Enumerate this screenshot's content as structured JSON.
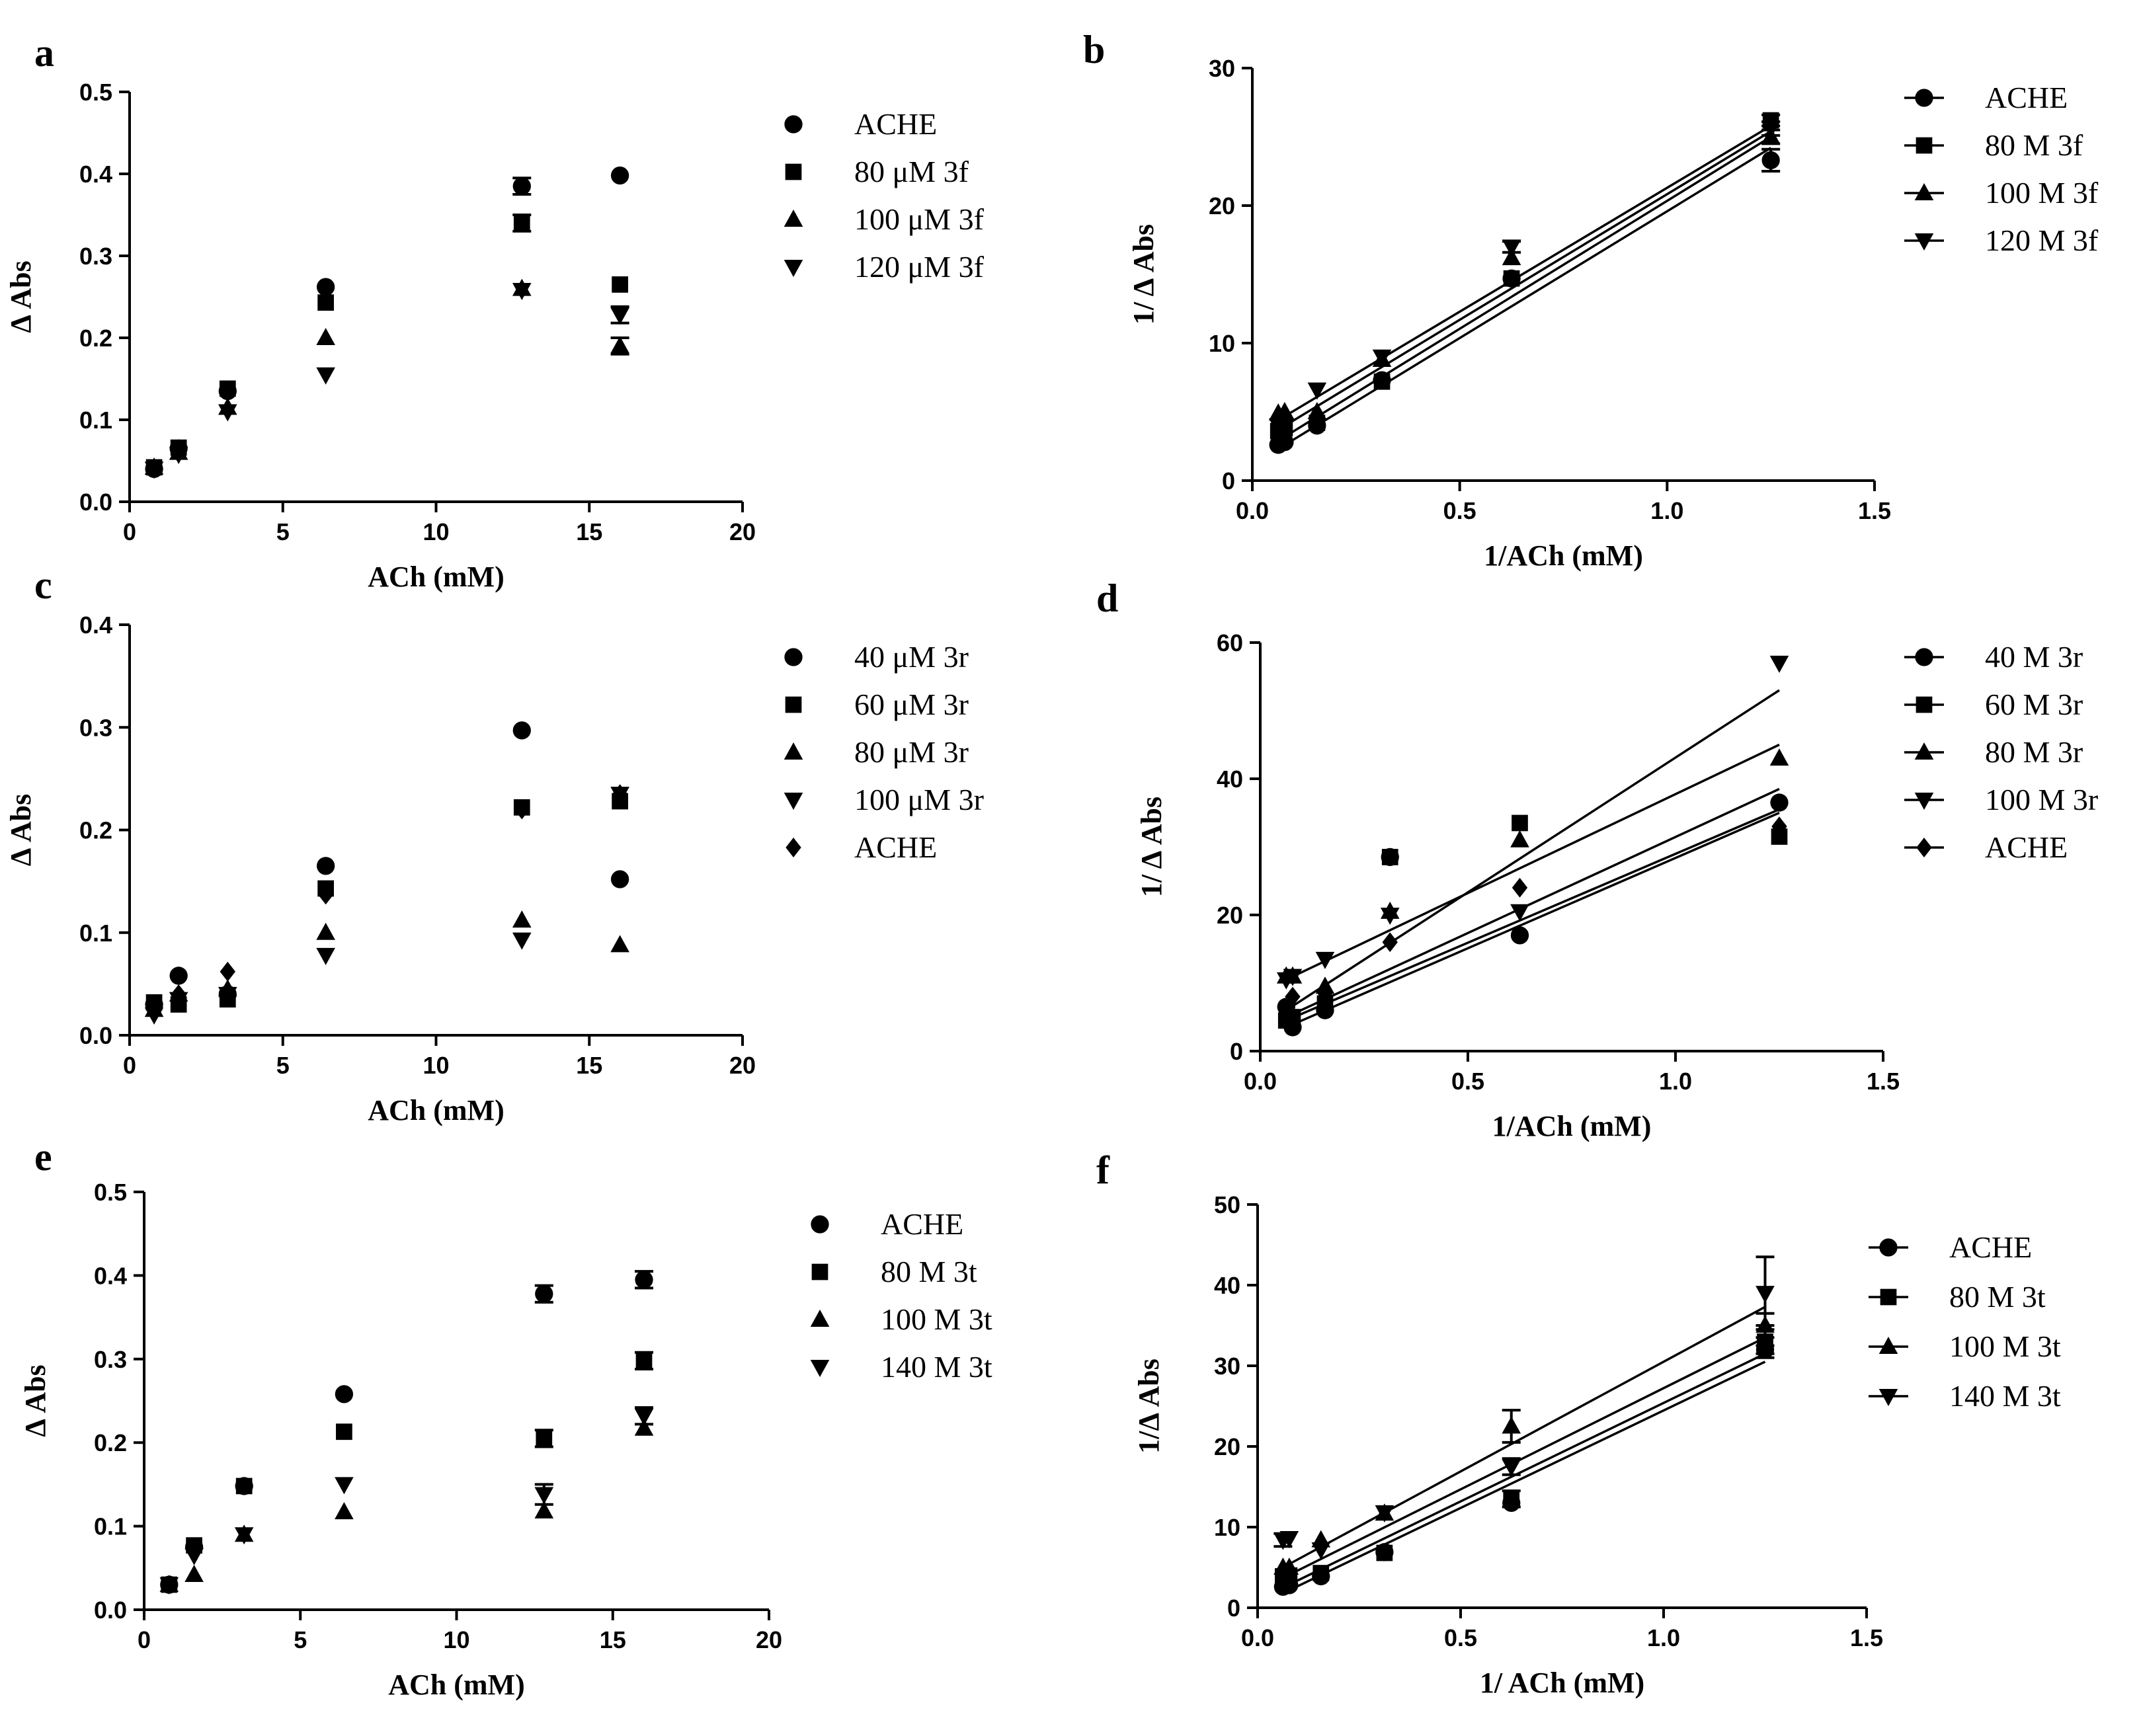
{
  "chart_data": [
    {
      "id": "a",
      "panel_label": "a",
      "type": "scatter",
      "xlabel": "ACh (mM)",
      "ylabel": "Δ Abs",
      "xlim": [
        0,
        20
      ],
      "ylim": [
        0,
        0.5
      ],
      "xticks": [
        0,
        5,
        10,
        15,
        20
      ],
      "yticks": [
        0.0,
        0.1,
        0.2,
        0.3,
        0.4,
        0.5
      ],
      "x_tick_labels": [
        "0",
        "5",
        "10",
        "15",
        "20"
      ],
      "y_tick_labels": [
        "0.0",
        "0.1",
        "0.2",
        "0.3",
        "0.4",
        "0.5"
      ],
      "legend_position": "right",
      "series": [
        {
          "name": "ACHE",
          "marker": "circle",
          "x": [
            0.8,
            1.6,
            3.2,
            6.4,
            12.8,
            16
          ],
          "y": [
            0.04,
            0.065,
            0.135,
            0.262,
            0.385,
            0.398
          ],
          "err": [
            0,
            0,
            0,
            0,
            0.01,
            0
          ]
        },
        {
          "name": "80 μM 3f",
          "marker": "square",
          "x": [
            0.8,
            1.6,
            3.2,
            6.4,
            12.8,
            16
          ],
          "y": [
            0.042,
            0.066,
            0.138,
            0.243,
            0.34,
            0.265
          ],
          "err": [
            0,
            0,
            0,
            0,
            0.01,
            0
          ]
        },
        {
          "name": "100 μM 3f",
          "marker": "triangle-up",
          "x": [
            0.8,
            1.6,
            3.2,
            6.4,
            12.8,
            16
          ],
          "y": [
            0.042,
            0.06,
            0.115,
            0.2,
            0.26,
            0.19
          ],
          "err": [
            0,
            0,
            0,
            0,
            0,
            0.01
          ]
        },
        {
          "name": "120 μM 3f",
          "marker": "triangle-down",
          "x": [
            0.8,
            1.6,
            3.2,
            6.4,
            12.8,
            16
          ],
          "y": [
            0.04,
            0.058,
            0.11,
            0.155,
            0.258,
            0.228
          ],
          "err": [
            0,
            0,
            0,
            0,
            0,
            0.01
          ]
        }
      ]
    },
    {
      "id": "b",
      "panel_label": "b",
      "type": "line",
      "xlabel": "1/ACh (mM)",
      "ylabel": "1/ Δ Abs",
      "xlim": [
        0,
        1.5
      ],
      "ylim": [
        0,
        30
      ],
      "xticks": [
        0,
        0.5,
        1.0,
        1.5
      ],
      "yticks": [
        0,
        10,
        20,
        30
      ],
      "x_tick_labels": [
        "0.0",
        "0.5",
        "1.0",
        "1.5"
      ],
      "y_tick_labels": [
        "0",
        "10",
        "20",
        "30"
      ],
      "legend_position": "right",
      "series": [
        {
          "name": "ACHE",
          "marker": "circle",
          "x": [
            0.0625,
            0.078,
            0.156,
            0.3125,
            0.625,
            1.25
          ],
          "y": [
            2.6,
            2.8,
            4.0,
            7.3,
            14.7,
            23.3
          ],
          "err": [
            0,
            0,
            0,
            0,
            0,
            0.8
          ],
          "fit": [
            [
              0.0625,
              2.3
            ],
            [
              1.25,
              24.2
            ]
          ]
        },
        {
          "name": "80 M 3f",
          "marker": "square",
          "x": [
            0.0625,
            0.078,
            0.156,
            0.3125,
            0.625,
            1.25
          ],
          "y": [
            3.6,
            3.8,
            4.2,
            7.2,
            14.7,
            26.2
          ],
          "err": [
            0,
            0,
            0,
            0,
            0,
            0.4
          ],
          "fit": [
            [
              0.0625,
              2.9
            ],
            [
              1.25,
              25.0
            ]
          ]
        },
        {
          "name": "100 M 3f",
          "marker": "triangle-up",
          "x": [
            0.0625,
            0.078,
            0.156,
            0.3125,
            0.625,
            1.25
          ],
          "y": [
            4.9,
            5.0,
            5.0,
            8.8,
            16.2,
            25.0
          ],
          "err": [
            0,
            0,
            0,
            0,
            0,
            0.5
          ],
          "fit": [
            [
              0.0625,
              3.7
            ],
            [
              1.25,
              25.4
            ]
          ]
        },
        {
          "name": "120 M 3f",
          "marker": "triangle-down",
          "x": [
            0.0625,
            0.078,
            0.156,
            0.3125,
            0.625,
            1.25
          ],
          "y": [
            4.0,
            4.0,
            6.6,
            9.0,
            17.0,
            25.6
          ],
          "err": [
            0,
            0,
            0,
            0,
            0.4,
            0.5
          ],
          "fit": [
            [
              0.0625,
              4.4
            ],
            [
              1.25,
              25.8
            ]
          ]
        }
      ]
    },
    {
      "id": "c",
      "panel_label": "c",
      "type": "scatter",
      "xlabel": "ACh (mM)",
      "ylabel": "Δ Abs",
      "xlim": [
        0,
        20
      ],
      "ylim": [
        0,
        0.4
      ],
      "xticks": [
        0,
        5,
        10,
        15,
        20
      ],
      "yticks": [
        0.0,
        0.1,
        0.2,
        0.3,
        0.4
      ],
      "x_tick_labels": [
        "0",
        "5",
        "10",
        "15",
        "20"
      ],
      "y_tick_labels": [
        "0.0",
        "0.1",
        "0.2",
        "0.3",
        "0.4"
      ],
      "legend_position": "right",
      "series": [
        {
          "name": "40 μM 3r",
          "marker": "circle",
          "x": [
            0.8,
            1.6,
            3.2,
            6.4,
            12.8,
            16
          ],
          "y": [
            0.03,
            0.058,
            0.04,
            0.165,
            0.297,
            0.152
          ],
          "err": [
            0,
            0,
            0,
            0,
            0,
            0
          ]
        },
        {
          "name": "60 μM 3r",
          "marker": "square",
          "x": [
            0.8,
            1.6,
            3.2,
            6.4,
            12.8,
            16
          ],
          "y": [
            0.032,
            0.03,
            0.035,
            0.143,
            0.222,
            0.228
          ],
          "err": [
            0,
            0,
            0,
            0,
            0,
            0
          ]
        },
        {
          "name": "80 μM 3r",
          "marker": "triangle-up",
          "x": [
            0.8,
            1.6,
            3.2,
            6.4,
            12.8,
            16
          ],
          "y": [
            0.025,
            0.04,
            0.045,
            0.1,
            0.112,
            0.088
          ],
          "err": [
            0,
            0,
            0,
            0,
            0,
            0
          ]
        },
        {
          "name": "100 μM 3r",
          "marker": "triangle-down",
          "x": [
            0.8,
            1.6,
            3.2,
            6.4,
            12.8,
            16
          ],
          "y": [
            0.02,
            0.035,
            0.04,
            0.078,
            0.093,
            0.235
          ],
          "err": [
            0,
            0,
            0,
            0,
            0,
            0
          ]
        },
        {
          "name": "ACHE",
          "marker": "diamond",
          "x": [
            0.8,
            1.6,
            3.2,
            6.4,
            12.8,
            16
          ],
          "y": [
            0.025,
            0.04,
            0.062,
            0.137,
            0.22,
            0.235
          ],
          "err": [
            0,
            0,
            0,
            0,
            0,
            0
          ]
        }
      ]
    },
    {
      "id": "d",
      "panel_label": "d",
      "type": "line",
      "xlabel": "1/ACh (mM)",
      "ylabel": "1/ Δ Abs",
      "xlim": [
        0,
        1.5
      ],
      "ylim": [
        0,
        60
      ],
      "xticks": [
        0,
        0.5,
        1.0,
        1.5
      ],
      "yticks": [
        0,
        20,
        40,
        60
      ],
      "x_tick_labels": [
        "0.0",
        "0.5",
        "1.0",
        "1.5"
      ],
      "y_tick_labels": [
        "0",
        "20",
        "40",
        "60"
      ],
      "legend_position": "right",
      "series": [
        {
          "name": "40 M 3r",
          "marker": "circle",
          "x": [
            0.0625,
            0.078,
            0.156,
            0.3125,
            0.625,
            1.25
          ],
          "y": [
            6.5,
            3.5,
            6.0,
            28.5,
            17.0,
            36.5
          ],
          "err": [
            0,
            0,
            0,
            0,
            0,
            0
          ],
          "fit": [
            [
              0.0625,
              5.0
            ],
            [
              1.25,
              38.5
            ]
          ]
        },
        {
          "name": "60 M 3r",
          "marker": "square",
          "x": [
            0.0625,
            0.078,
            0.156,
            0.3125,
            0.625,
            1.25
          ],
          "y": [
            4.5,
            5.0,
            7.0,
            28.5,
            33.5,
            31.5
          ],
          "err": [
            0,
            0,
            0,
            0,
            0,
            0
          ],
          "fit": [
            [
              0.0625,
              6.0
            ],
            [
              1.25,
              53.0
            ]
          ]
        },
        {
          "name": "80 M 3r",
          "marker": "triangle-up",
          "x": [
            0.0625,
            0.078,
            0.156,
            0.3125,
            0.625,
            1.25
          ],
          "y": [
            11.0,
            11.0,
            9.5,
            20.5,
            31.0,
            43.0
          ],
          "err": [
            0,
            0,
            0,
            0,
            0,
            0
          ],
          "fit": [
            [
              0.0625,
              10.5
            ],
            [
              1.25,
              45.0
            ]
          ]
        },
        {
          "name": "100 M 3r",
          "marker": "triangle-down",
          "x": [
            0.0625,
            0.078,
            0.156,
            0.3125,
            0.625,
            1.25
          ],
          "y": [
            10.5,
            11.0,
            13.5,
            20.0,
            20.5,
            57.0
          ],
          "err": [
            0,
            0,
            0,
            0,
            0,
            0
          ],
          "fit": [
            [
              0.0625,
              3.5
            ],
            [
              1.25,
              35.0
            ]
          ]
        },
        {
          "name": "ACHE",
          "marker": "diamond",
          "x": [
            0.0625,
            0.078,
            0.156,
            0.3125,
            0.625,
            1.25
          ],
          "y": [
            6.0,
            8.0,
            8.5,
            16.0,
            24.0,
            33.0
          ],
          "err": [
            0,
            0,
            0,
            0,
            0,
            0
          ],
          "fit": [
            [
              0.0625,
              4.5
            ],
            [
              1.25,
              35.5
            ]
          ]
        }
      ]
    },
    {
      "id": "e",
      "panel_label": "e",
      "type": "scatter",
      "xlabel": "ACh (mM)",
      "ylabel": "Δ Abs",
      "xlim": [
        0,
        20
      ],
      "ylim": [
        0,
        0.5
      ],
      "xticks": [
        0,
        5,
        10,
        15,
        20
      ],
      "yticks": [
        0.0,
        0.1,
        0.2,
        0.3,
        0.4,
        0.5
      ],
      "x_tick_labels": [
        "0",
        "5",
        "10",
        "15",
        "20"
      ],
      "y_tick_labels": [
        "0.0",
        "0.1",
        "0.2",
        "0.3",
        "0.4",
        "0.5"
      ],
      "legend_position": "right",
      "series": [
        {
          "name": "ACHE",
          "marker": "circle",
          "x": [
            0.8,
            1.6,
            3.2,
            6.4,
            12.8,
            16
          ],
          "y": [
            0.03,
            0.075,
            0.148,
            0.258,
            0.378,
            0.395
          ],
          "err": [
            0,
            0,
            0,
            0,
            0.01,
            0.01
          ]
        },
        {
          "name": "80 M 3t",
          "marker": "square",
          "x": [
            0.8,
            1.6,
            3.2,
            6.4,
            12.8,
            16
          ],
          "y": [
            0.03,
            0.077,
            0.148,
            0.213,
            0.205,
            0.298
          ],
          "err": [
            0,
            0,
            0,
            0,
            0.01,
            0.01
          ]
        },
        {
          "name": "100 M 3t",
          "marker": "triangle-up",
          "x": [
            0.8,
            1.6,
            3.2,
            6.4,
            12.8,
            16
          ],
          "y": [
            0.03,
            0.042,
            0.09,
            0.117,
            0.118,
            0.217
          ],
          "err": [
            0,
            0,
            0,
            0,
            0,
            0
          ]
        },
        {
          "name": "140 M 3t",
          "marker": "triangle-down",
          "x": [
            0.8,
            1.6,
            3.2,
            6.4,
            12.8,
            16
          ],
          "y": [
            0.03,
            0.065,
            0.09,
            0.15,
            0.138,
            0.232
          ],
          "err": [
            0,
            0,
            0,
            0,
            0.012,
            0.01
          ]
        }
      ]
    },
    {
      "id": "f",
      "panel_label": "f",
      "type": "line",
      "xlabel": "1/ ACh (mM)",
      "ylabel": "1/Δ Abs",
      "xlim": [
        0,
        1.5
      ],
      "ylim": [
        0,
        50
      ],
      "xticks": [
        0,
        0.5,
        1.0,
        1.5
      ],
      "yticks": [
        0,
        10,
        20,
        30,
        40,
        50
      ],
      "x_tick_labels": [
        "0.0",
        "0.5",
        "1.0",
        "1.5"
      ],
      "y_tick_labels": [
        "0",
        "10",
        "20",
        "30",
        "40",
        "50"
      ],
      "legend_position": "right",
      "series": [
        {
          "name": "ACHE",
          "marker": "circle",
          "x": [
            0.0625,
            0.078,
            0.156,
            0.3125,
            0.625,
            1.25
          ],
          "y": [
            2.6,
            2.8,
            3.9,
            6.9,
            13.0,
            32.0
          ],
          "err": [
            0,
            0,
            0,
            0,
            0,
            0.5
          ],
          "fit": [
            [
              0.0625,
              1.8
            ],
            [
              1.25,
              30.5
            ]
          ]
        },
        {
          "name": "80 M 3t",
          "marker": "square",
          "x": [
            0.0625,
            0.078,
            0.156,
            0.3125,
            0.625,
            1.25
          ],
          "y": [
            3.9,
            4.0,
            4.3,
            6.8,
            13.5,
            33.0
          ],
          "err": [
            0,
            0,
            0,
            0,
            1.0,
            2.0
          ],
          "fit": [
            [
              0.0625,
              2.5
            ],
            [
              1.25,
              31.5
            ]
          ]
        },
        {
          "name": "100 M 3t",
          "marker": "triangle-up",
          "x": [
            0.0625,
            0.078,
            0.156,
            0.3125,
            0.625,
            1.25
          ],
          "y": [
            5.0,
            5.0,
            8.4,
            11.7,
            22.5,
            35.0
          ],
          "err": [
            0,
            0,
            0,
            0,
            2.0,
            1.5
          ],
          "fit": [
            [
              0.0625,
              3.7
            ],
            [
              1.25,
              33.5
            ]
          ]
        },
        {
          "name": "140 M 3t",
          "marker": "triangle-down",
          "x": [
            0.0625,
            0.078,
            0.156,
            0.3125,
            0.625,
            1.25
          ],
          "y": [
            8.4,
            8.6,
            7.2,
            11.8,
            17.5,
            39.0
          ],
          "err": [
            0.8,
            0,
            0,
            0,
            1.0,
            4.5
          ],
          "fit": [
            [
              0.0625,
              5.0
            ],
            [
              1.25,
              37.3
            ]
          ]
        }
      ]
    }
  ]
}
